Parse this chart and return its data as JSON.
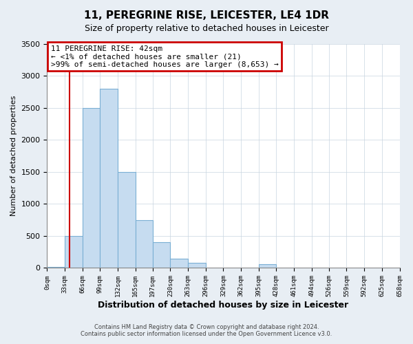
{
  "title": "11, PEREGRINE RISE, LEICESTER, LE4 1DR",
  "subtitle": "Size of property relative to detached houses in Leicester",
  "xlabel": "Distribution of detached houses by size in Leicester",
  "ylabel": "Number of detached properties",
  "bar_edges": [
    0,
    33,
    66,
    99,
    132,
    165,
    197,
    230,
    263,
    296,
    329,
    362,
    395,
    428,
    461,
    494,
    526,
    559,
    592,
    625,
    658
  ],
  "bar_values": [
    21,
    500,
    2500,
    2800,
    1500,
    750,
    400,
    150,
    75,
    0,
    0,
    0,
    57,
    0,
    0,
    0,
    0,
    0,
    0,
    0
  ],
  "tick_labels": [
    "0sqm",
    "33sqm",
    "66sqm",
    "99sqm",
    "132sqm",
    "165sqm",
    "197sqm",
    "230sqm",
    "263sqm",
    "296sqm",
    "329sqm",
    "362sqm",
    "395sqm",
    "428sqm",
    "461sqm",
    "494sqm",
    "526sqm",
    "559sqm",
    "592sqm",
    "625sqm",
    "658sqm"
  ],
  "ylim": [
    0,
    3500
  ],
  "yticks": [
    0,
    500,
    1000,
    1500,
    2000,
    2500,
    3000,
    3500
  ],
  "property_line_x": 42,
  "bar_color": "#c6dcf0",
  "bar_edgecolor": "#7aafd4",
  "vline_color": "#cc0000",
  "annotation_text": "11 PEREGRINE RISE: 42sqm\n← <1% of detached houses are smaller (21)\n>99% of semi-detached houses are larger (8,653) →",
  "annotation_box_edgecolor": "#cc0000",
  "footer1": "Contains HM Land Registry data © Crown copyright and database right 2024.",
  "footer2": "Contains public sector information licensed under the Open Government Licence v3.0.",
  "fig_background_color": "#e8eef4",
  "plot_background": "#ffffff",
  "grid_color": "#c8d4e0"
}
